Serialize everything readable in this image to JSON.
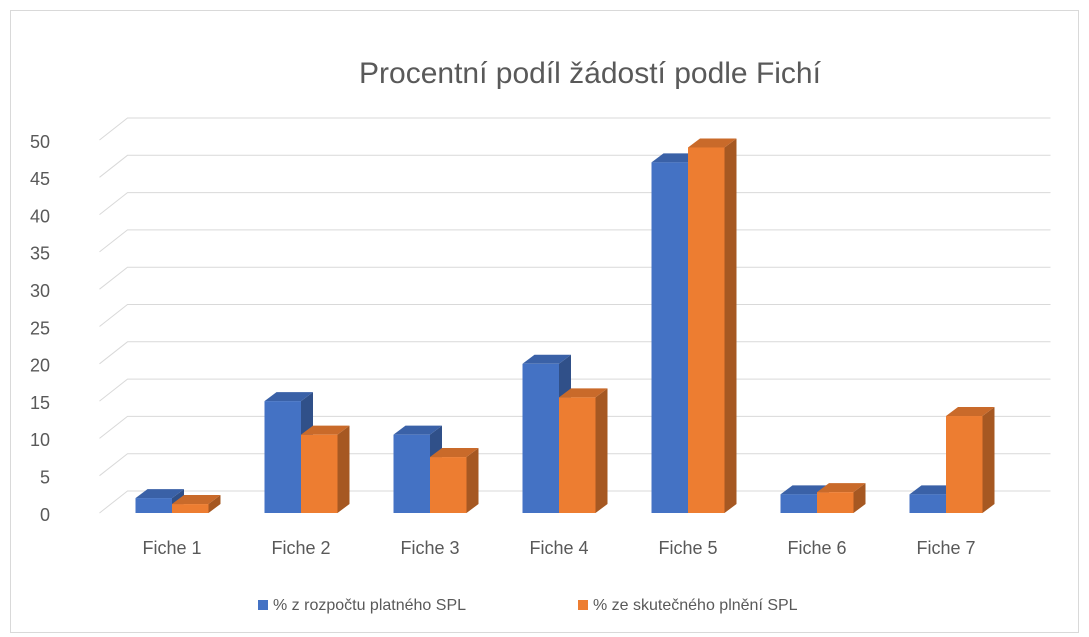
{
  "chart_data": {
    "type": "bar3d",
    "title": "Procentní podíl žádostí podle Fichí",
    "categories": [
      "Fiche 1",
      "Fiche 2",
      "Fiche 3",
      "Fiche 4",
      "Fiche 5",
      "Fiche 6",
      "Fiche 7"
    ],
    "series": [
      {
        "name": "% z rozpočtu platného SPL",
        "color": "#4472c4",
        "values": [
          2,
          15,
          10.5,
          20,
          47,
          2.5,
          2.5
        ]
      },
      {
        "name": "% ze skutečného plnění SPL",
        "color": "#ed7d31",
        "values": [
          1.2,
          10.5,
          7.5,
          15.5,
          49,
          2.8,
          13
        ]
      }
    ],
    "ylim": [
      0,
      50
    ],
    "yticks": [
      0,
      5,
      10,
      15,
      20,
      25,
      30,
      35,
      40,
      45,
      50
    ],
    "grid": true,
    "legend": "bottom"
  }
}
